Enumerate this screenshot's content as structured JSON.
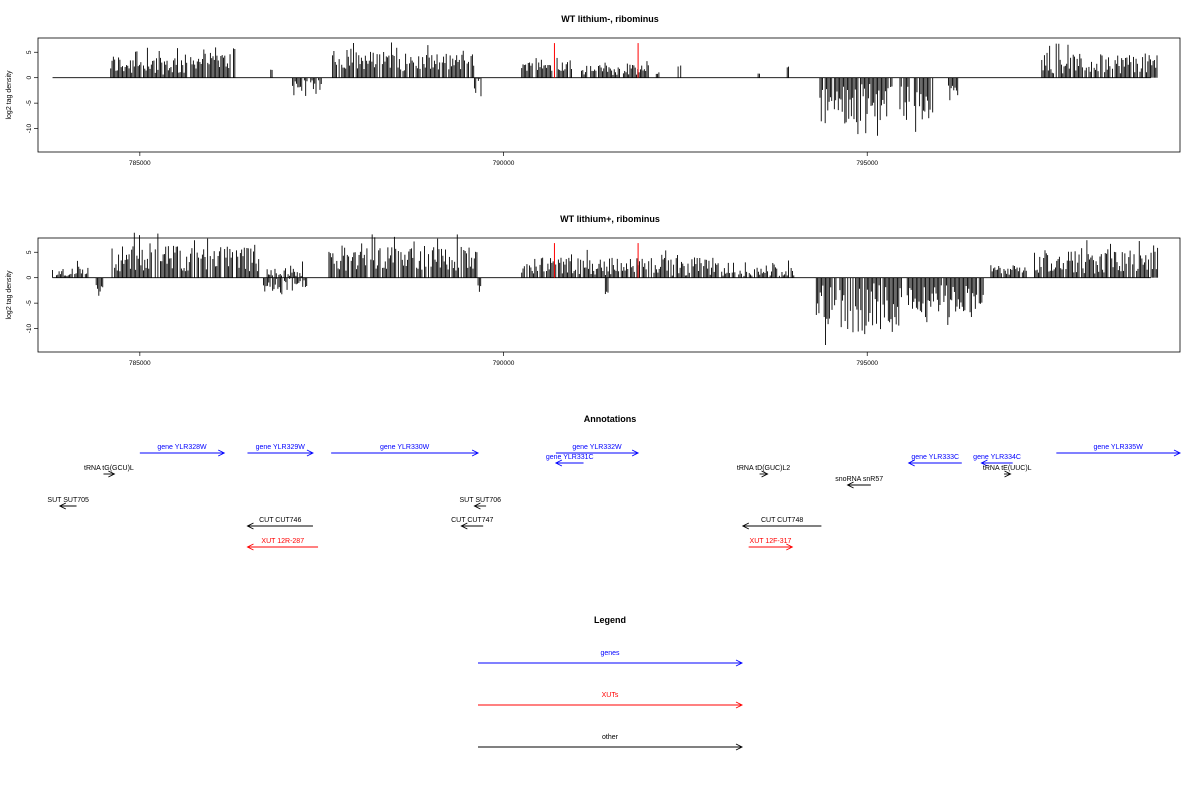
{
  "chart_data": [
    {
      "type": "bar",
      "title": "WT lithium-, ribominus",
      "xlabel": "",
      "ylabel": "log2 tag density",
      "xlim": [
        783600,
        799300
      ],
      "ylim": [
        -14.6,
        7.8
      ],
      "xticks": [
        785000,
        790000,
        795000
      ],
      "yticks": [
        5,
        0,
        -5,
        -10
      ],
      "grid": false,
      "highlight_color": "#ff0000",
      "bar_color": "#000000",
      "highlights": [
        {
          "x": 790700,
          "value": 6.8
        },
        {
          "x": 791850,
          "value": 6.8
        }
      ],
      "segments": [
        {
          "x0": 784600,
          "x1": 785650,
          "mean": 2.6,
          "amp": 2.0,
          "dir": 1
        },
        {
          "x0": 785700,
          "x1": 786250,
          "mean": 3.3,
          "amp": 1.6,
          "dir": 1
        },
        {
          "x0": 786270,
          "x1": 786310,
          "mean": 5.6,
          "amp": 0.3,
          "dir": 1
        },
        {
          "x0": 786800,
          "x1": 786820,
          "mean": 1.6,
          "amp": 0.2,
          "dir": 1
        },
        {
          "x0": 787100,
          "x1": 787300,
          "mean": -1.8,
          "amp": 1.8,
          "dir": -1
        },
        {
          "x0": 787350,
          "x1": 787500,
          "mean": -1.5,
          "amp": 1.0,
          "dir": -1
        },
        {
          "x0": 787650,
          "x1": 788600,
          "mean": 3.4,
          "amp": 1.8,
          "dir": 1
        },
        {
          "x0": 788600,
          "x1": 789600,
          "mean": 3.0,
          "amp": 1.8,
          "dir": 1
        },
        {
          "x0": 789600,
          "x1": 789700,
          "mean": -1.6,
          "amp": 1.8,
          "dir": -1
        },
        {
          "x0": 790250,
          "x1": 790950,
          "mean": 2.3,
          "amp": 1.0,
          "dir": 1
        },
        {
          "x0": 791000,
          "x1": 792000,
          "mean": 1.5,
          "amp": 1.0,
          "dir": 1
        },
        {
          "x0": 792100,
          "x1": 792150,
          "mean": 1.0,
          "amp": 0.3,
          "dir": 1
        },
        {
          "x0": 792400,
          "x1": 792450,
          "mean": 2.2,
          "amp": 0.2,
          "dir": 1
        },
        {
          "x0": 793500,
          "x1": 793520,
          "mean": 0.8,
          "amp": 0.2,
          "dir": 1
        },
        {
          "x0": 793900,
          "x1": 793930,
          "mean": 2.2,
          "amp": 0.2,
          "dir": 1
        },
        {
          "x0": 794350,
          "x1": 795350,
          "mean": -5.0,
          "amp": 4.0,
          "dir": -1
        },
        {
          "x0": 795450,
          "x1": 795900,
          "mean": -5.0,
          "amp": 3.5,
          "dir": -1
        },
        {
          "x0": 796100,
          "x1": 796250,
          "mean": -2.5,
          "amp": 1.0,
          "dir": -1
        },
        {
          "x0": 797400,
          "x1": 799000,
          "mean": 2.8,
          "amp": 2.0,
          "dir": 1
        }
      ]
    },
    {
      "type": "bar",
      "title": "WT lithium+, ribominus",
      "xlabel": "",
      "ylabel": "log2 tag density",
      "xlim": [
        783600,
        799300
      ],
      "ylim": [
        -14.6,
        7.8
      ],
      "xticks": [
        785000,
        790000,
        795000
      ],
      "yticks": [
        5,
        0,
        -5,
        -10
      ],
      "grid": false,
      "highlight_color": "#ff0000",
      "bar_color": "#000000",
      "highlights": [
        {
          "x": 790700,
          "value": 6.8
        },
        {
          "x": 791850,
          "value": 6.8
        }
      ],
      "segments": [
        {
          "x0": 783800,
          "x1": 784300,
          "mean": 1.0,
          "amp": 1.2,
          "dir": 1
        },
        {
          "x0": 784400,
          "x1": 784500,
          "mean": -1.8,
          "amp": 1.0,
          "dir": -1
        },
        {
          "x0": 784600,
          "x1": 786650,
          "mean": 3.8,
          "amp": 2.6,
          "dir": 1
        },
        {
          "x0": 786700,
          "x1": 787300,
          "mean": -1.6,
          "amp": 1.4,
          "dir": -1
        },
        {
          "x0": 786750,
          "x1": 787250,
          "mean": 1.2,
          "amp": 1.0,
          "dir": 1
        },
        {
          "x0": 787600,
          "x1": 789650,
          "mean": 3.8,
          "amp": 2.4,
          "dir": 1
        },
        {
          "x0": 789650,
          "x1": 789700,
          "mean": -2.5,
          "amp": 1.2,
          "dir": -1
        },
        {
          "x0": 790250,
          "x1": 792950,
          "mean": 2.2,
          "amp": 1.8,
          "dir": 1
        },
        {
          "x0": 791400,
          "x1": 791450,
          "mean": -3.0,
          "amp": 0.3,
          "dir": -1
        },
        {
          "x0": 793000,
          "x1": 794000,
          "mean": 1.2,
          "amp": 1.2,
          "dir": 1
        },
        {
          "x0": 794300,
          "x1": 795500,
          "mean": -6.0,
          "amp": 5.0,
          "dir": -1
        },
        {
          "x0": 795550,
          "x1": 796600,
          "mean": -4.0,
          "amp": 2.8,
          "dir": -1
        },
        {
          "x0": 797300,
          "x1": 799000,
          "mean": 3.0,
          "amp": 2.2,
          "dir": 1
        },
        {
          "x0": 796700,
          "x1": 797200,
          "mean": 1.5,
          "amp": 1.0,
          "dir": 1
        }
      ]
    }
  ],
  "annotations": {
    "title": "Annotations",
    "features": [
      {
        "label": "gene YLR328W",
        "kind": "gene",
        "x0": 785000,
        "x1": 786160,
        "row": 1,
        "dir": "right"
      },
      {
        "label": "gene YLR329W",
        "kind": "gene",
        "x0": 786480,
        "x1": 787380,
        "row": 1,
        "dir": "right"
      },
      {
        "label": "gene YLR330W",
        "kind": "gene",
        "x0": 787630,
        "x1": 789650,
        "row": 1,
        "dir": "right"
      },
      {
        "label": "gene YLR332W",
        "kind": "gene",
        "x0": 790720,
        "x1": 791850,
        "row": 1,
        "dir": "right"
      },
      {
        "label": "gene YLR331C",
        "kind": "gene",
        "x0": 790720,
        "x1": 791100,
        "row": 2,
        "dir": "left"
      },
      {
        "label": "gene YLR333C",
        "kind": "gene",
        "x0": 795570,
        "x1": 796300,
        "row": 2,
        "dir": "left"
      },
      {
        "label": "gene YLR334C",
        "kind": "gene",
        "x0": 796570,
        "x1": 797000,
        "row": 2,
        "dir": "left"
      },
      {
        "label": "gene YLR335W",
        "kind": "gene",
        "x0": 797600,
        "x1": 799300,
        "row": 1,
        "dir": "right"
      },
      {
        "label": "tRNA tG(GCU)L",
        "kind": "other",
        "x0": 784500,
        "x1": 784650,
        "row": 3,
        "dir": "right"
      },
      {
        "label": "tRNA tD(GUC)L2",
        "kind": "other",
        "x0": 793520,
        "x1": 793630,
        "row": 3,
        "dir": "right"
      },
      {
        "label": "tRNA tE(UUC)L",
        "kind": "other",
        "x0": 796880,
        "x1": 796970,
        "row": 3,
        "dir": "right"
      },
      {
        "label": "snoRNA snR57",
        "kind": "other",
        "x0": 794730,
        "x1": 795050,
        "row": 4,
        "dir": "left"
      },
      {
        "label": "SUT SUT705",
        "kind": "other",
        "x0": 783900,
        "x1": 784130,
        "row": 5,
        "dir": "left"
      },
      {
        "label": "SUT SUT706",
        "kind": "other",
        "x0": 789600,
        "x1": 789760,
        "row": 5,
        "dir": "left"
      },
      {
        "label": "CUT CUT746",
        "kind": "other",
        "x0": 786480,
        "x1": 787380,
        "row": 6,
        "dir": "left"
      },
      {
        "label": "CUT CUT747",
        "kind": "other",
        "x0": 789420,
        "x1": 789720,
        "row": 6,
        "dir": "left"
      },
      {
        "label": "CUT CUT748",
        "kind": "other",
        "x0": 793290,
        "x1": 794370,
        "row": 6,
        "dir": "left"
      },
      {
        "label": "XUT 12R-287",
        "kind": "xut",
        "x0": 786480,
        "x1": 787450,
        "row": 7,
        "dir": "left"
      },
      {
        "label": "XUT 12F-317",
        "kind": "xut",
        "x0": 793370,
        "x1": 793970,
        "row": 7,
        "dir": "right"
      }
    ]
  },
  "legend": {
    "title": "Legend",
    "items": [
      {
        "label": "genes",
        "color": "#0000ff"
      },
      {
        "label": "XUTs",
        "color": "#ff0000"
      },
      {
        "label": "other",
        "color": "#000000"
      }
    ]
  },
  "colors": {
    "gene": "#0000ff",
    "xut": "#ff0000",
    "other": "#000000"
  }
}
